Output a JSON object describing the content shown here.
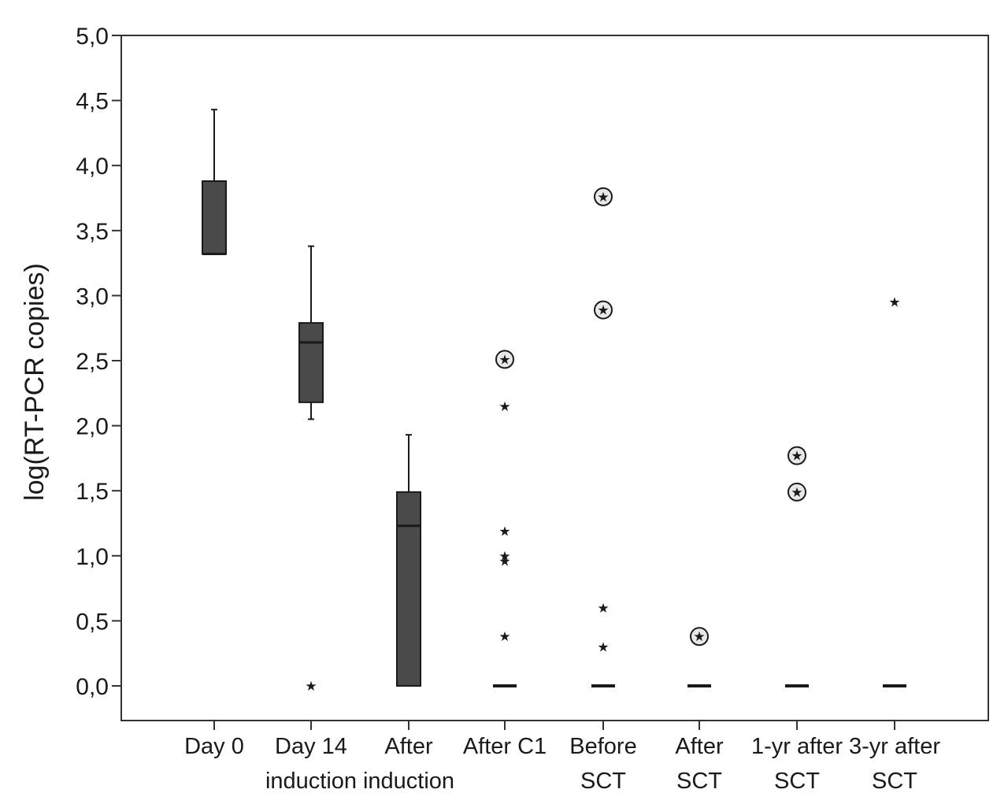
{
  "chart_data": {
    "type": "box",
    "title": "",
    "xlabel": "",
    "ylabel": "log(RT-PCR copies)",
    "ylim": [
      -0.25,
      5.0
    ],
    "yticks": [
      "0,0",
      "0,5",
      "1,0",
      "1,5",
      "2,0",
      "2,5",
      "3,0",
      "3,5",
      "4,0",
      "4,5",
      "5,0"
    ],
    "ytick_values": [
      0,
      0.5,
      1.0,
      1.5,
      2.0,
      2.5,
      3.0,
      3.5,
      4.0,
      4.5,
      5.0
    ],
    "categories": [
      {
        "line1": "Day 0",
        "line2": ""
      },
      {
        "line1": "Day 14",
        "line2": "induction"
      },
      {
        "line1": "After",
        "line2": "induction"
      },
      {
        "line1": "After C1",
        "line2": ""
      },
      {
        "line1": "Before",
        "line2": "SCT"
      },
      {
        "line1": "After",
        "line2": "SCT"
      },
      {
        "line1": "1-yr after",
        "line2": "SCT"
      },
      {
        "line1": "3-yr after",
        "line2": "SCT"
      }
    ],
    "boxes": [
      {
        "whisker_low": 3.32,
        "q1": 3.32,
        "median": 3.32,
        "q3": 3.88,
        "whisker_high": 4.43
      },
      {
        "whisker_low": 2.05,
        "q1": 2.18,
        "median": 2.64,
        "q3": 2.79,
        "whisker_high": 3.38
      },
      {
        "whisker_low": 0.0,
        "q1": 0.0,
        "median": 1.23,
        "q3": 1.49,
        "whisker_high": 1.93
      },
      {
        "whisker_low": 0.0,
        "q1": 0.0,
        "median": 0.0,
        "q3": 0.0,
        "whisker_high": 0.0
      },
      {
        "whisker_low": 0.0,
        "q1": 0.0,
        "median": 0.0,
        "q3": 0.0,
        "whisker_high": 0.0
      },
      {
        "whisker_low": 0.0,
        "q1": 0.0,
        "median": 0.0,
        "q3": 0.0,
        "whisker_high": 0.0
      },
      {
        "whisker_low": 0.0,
        "q1": 0.0,
        "median": 0.0,
        "q3": 0.0,
        "whisker_high": 0.0
      },
      {
        "whisker_low": 0.0,
        "q1": 0.0,
        "median": 0.0,
        "q3": 0.0,
        "whisker_high": 0.0
      }
    ],
    "outliers": [
      {
        "category": 1,
        "value": 0.0,
        "circled": false
      },
      {
        "category": 3,
        "value": 2.51,
        "circled": true
      },
      {
        "category": 3,
        "value": 2.15,
        "circled": false
      },
      {
        "category": 3,
        "value": 1.19,
        "circled": false
      },
      {
        "category": 3,
        "value": 1.0,
        "circled": false
      },
      {
        "category": 3,
        "value": 0.96,
        "circled": false
      },
      {
        "category": 3,
        "value": 0.38,
        "circled": false
      },
      {
        "category": 4,
        "value": 3.76,
        "circled": true
      },
      {
        "category": 4,
        "value": 2.89,
        "circled": true
      },
      {
        "category": 4,
        "value": 0.6,
        "circled": false
      },
      {
        "category": 4,
        "value": 0.3,
        "circled": false
      },
      {
        "category": 5,
        "value": 0.38,
        "circled": true
      },
      {
        "category": 6,
        "value": 1.77,
        "circled": true
      },
      {
        "category": 6,
        "value": 1.49,
        "circled": true
      },
      {
        "category": 7,
        "value": 2.95,
        "circled": false
      }
    ],
    "outlier_marker": "★",
    "colors": {
      "box_fill": "#4a4a4a",
      "line": "#1a1a1a",
      "frame": "#333333",
      "background": "#ffffff"
    }
  }
}
